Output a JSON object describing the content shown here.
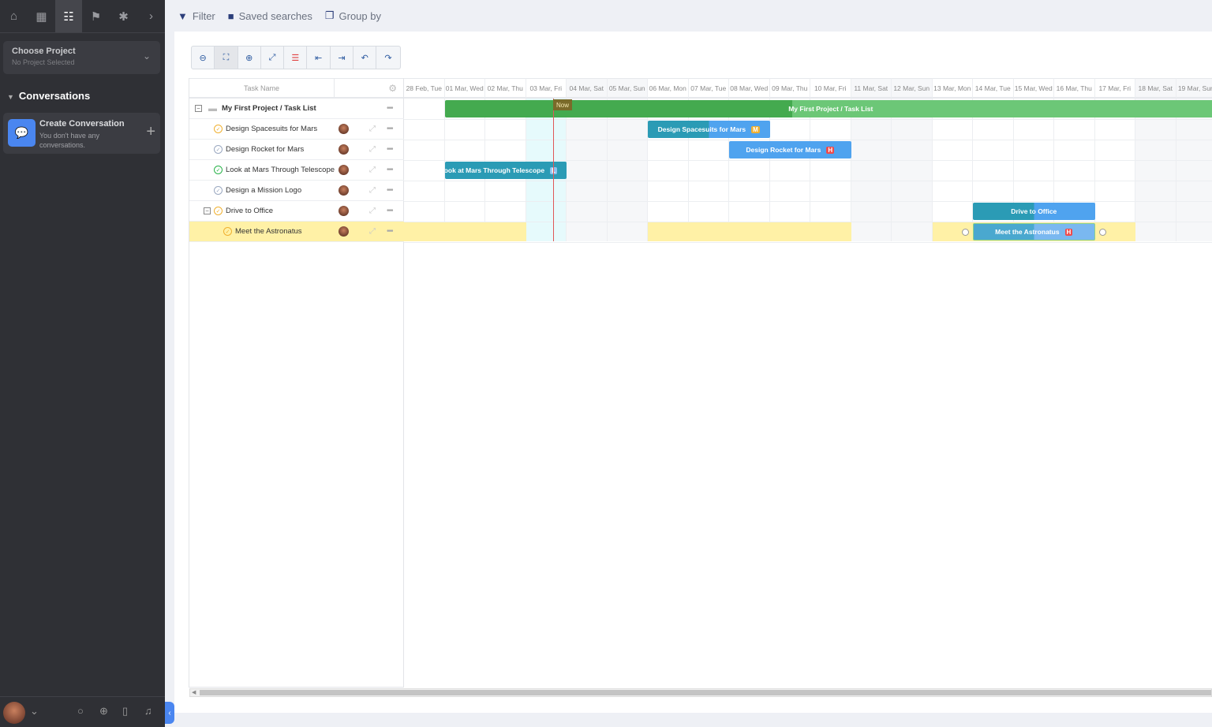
{
  "sidebar": {
    "nav_icons": [
      "home-icon",
      "grid-icon",
      "tasks-icon",
      "flag-icon",
      "bug-icon",
      "chevron-right-icon"
    ],
    "project": {
      "title": "Choose Project",
      "subtitle": "No Project Selected"
    },
    "conversations_header": "Conversations",
    "create_conversation": {
      "title": "Create Conversation",
      "subtitle": "You don't have any conversations."
    },
    "bottom_icons": [
      "search-icon",
      "add-circle-icon",
      "bookmark-icon",
      "bell-icon"
    ]
  },
  "topbar": {
    "filter": "Filter",
    "saved_searches": "Saved searches",
    "group_by": "Group by"
  },
  "toolbar": [
    "zoom-out",
    "zoom-to-fit",
    "zoom-in",
    "fullscreen",
    "critical-path",
    "outdent",
    "indent",
    "undo",
    "redo"
  ],
  "grid": {
    "header": "Task Name",
    "rows": [
      {
        "name": "My First Project / Task List",
        "type": "project",
        "status": ""
      },
      {
        "name": "Design Spacesuits for Mars",
        "status": "in-progress",
        "level": 1
      },
      {
        "name": "Design Rocket for Mars",
        "status": "open",
        "level": 1
      },
      {
        "name": "Look at Mars Through Telescope",
        "status": "done",
        "level": 1
      },
      {
        "name": "Design a Mission Logo",
        "status": "open",
        "level": 1
      },
      {
        "name": "Drive to Office",
        "status": "in-progress",
        "level": 1
      },
      {
        "name": "Meet the Astronatus",
        "status": "in-progress",
        "level": 2,
        "selected": true
      }
    ]
  },
  "timeline": {
    "days": [
      "28 Feb, Tue",
      "01 Mar, Wed",
      "02 Mar, Thu",
      "03 Mar, Fri",
      "04 Mar, Sat",
      "05 Mar, Sun",
      "06 Mar, Mon",
      "07 Mar, Tue",
      "08 Mar, Wed",
      "09 Mar, Thu",
      "10 Mar, Fri",
      "11 Mar, Sat",
      "12 Mar, Sun",
      "13 Mar, Mon",
      "14 Mar, Tue",
      "15 Mar, Wed",
      "16 Mar, Thu",
      "17 Mar, Fri",
      "18 Mar, Sat",
      "19 Mar, Sun"
    ],
    "now_label": "Now",
    "today": "03 Mar, Fri",
    "bars": [
      {
        "label": "My First Project / Task List",
        "start": "01 Mar, Wed",
        "end": "19 Mar, Sun",
        "progress": 0.45,
        "color": "#6cc777",
        "progress_color": "#44aa4f",
        "priority": ""
      },
      {
        "label": "Design Spacesuits for Mars",
        "start": "06 Mar, Mon",
        "end": "08 Mar, Wed",
        "progress": 0.5,
        "color": "#4fa3ef",
        "progress_color": "#2b9bb5",
        "priority": "M",
        "priority_color": "#f0b030"
      },
      {
        "label": "Design Rocket for Mars",
        "start": "08 Mar, Wed",
        "end": "10 Mar, Fri",
        "progress": 0,
        "color": "#4fa3ef",
        "progress_color": "#2b9bb5",
        "priority": "H",
        "priority_color": "#ef4a4a"
      },
      {
        "label": "Look at Mars Through Telescope",
        "start": "01 Mar, Wed",
        "end": "03 Mar, Fri",
        "progress": 1,
        "color": "#4fa3ef",
        "progress_color": "#2b9bb5",
        "priority": "L",
        "priority_color": "#8ec3ee"
      },
      null,
      {
        "label": "Drive to Office",
        "start": "14 Mar, Tue",
        "end": "16 Mar, Thu",
        "progress": 0.5,
        "color": "#4fa3ef",
        "progress_color": "#2b9bb5",
        "priority": ""
      },
      {
        "label": "Meet the Astronatus",
        "start": "14 Mar, Tue",
        "end": "16 Mar, Thu",
        "progress": 0.5,
        "color": "#7ab8f0",
        "progress_color": "#4aa8cf",
        "priority": "H",
        "priority_color": "#ef4a4a"
      }
    ]
  }
}
